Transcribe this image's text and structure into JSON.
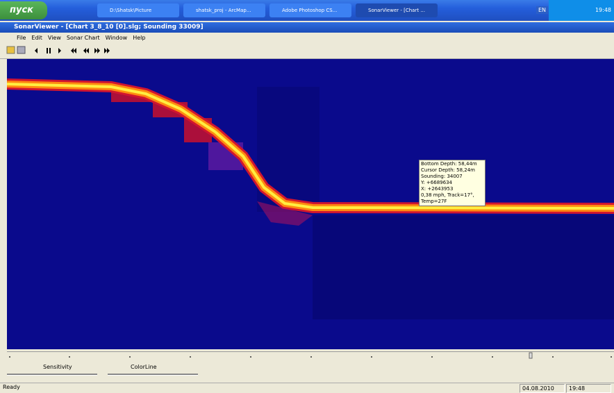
{
  "taskbar": {
    "start": "пуск",
    "tasks": [
      "D:\\Shatsk\\Picture",
      "shatsk_proj - ArcMap...",
      "Adobe Photoshop CS...",
      "SonarViewer - [Chart ..."
    ],
    "language": "EN",
    "clock": "19:48"
  },
  "window": {
    "title": "SonarViewer - [Chart 3_8_10 [0].slg; Sounding 33009]",
    "menu": [
      "File",
      "Edit",
      "View",
      "Sonar Chart",
      "Window",
      "Help"
    ]
  },
  "tooltip": {
    "lines": [
      "Bottom Depth: 58,44m",
      "Cursor Depth: 58,24m",
      "Sounding: 34007",
      "Y: +6689634",
      "X: +2643953",
      "0,38 mph, Track=17°,",
      "Temp=27F"
    ]
  },
  "sliders": [
    "Sensitivity",
    "ColorLine"
  ],
  "status": {
    "text": "Ready",
    "date": "04.08.2010",
    "time": "19:48"
  }
}
